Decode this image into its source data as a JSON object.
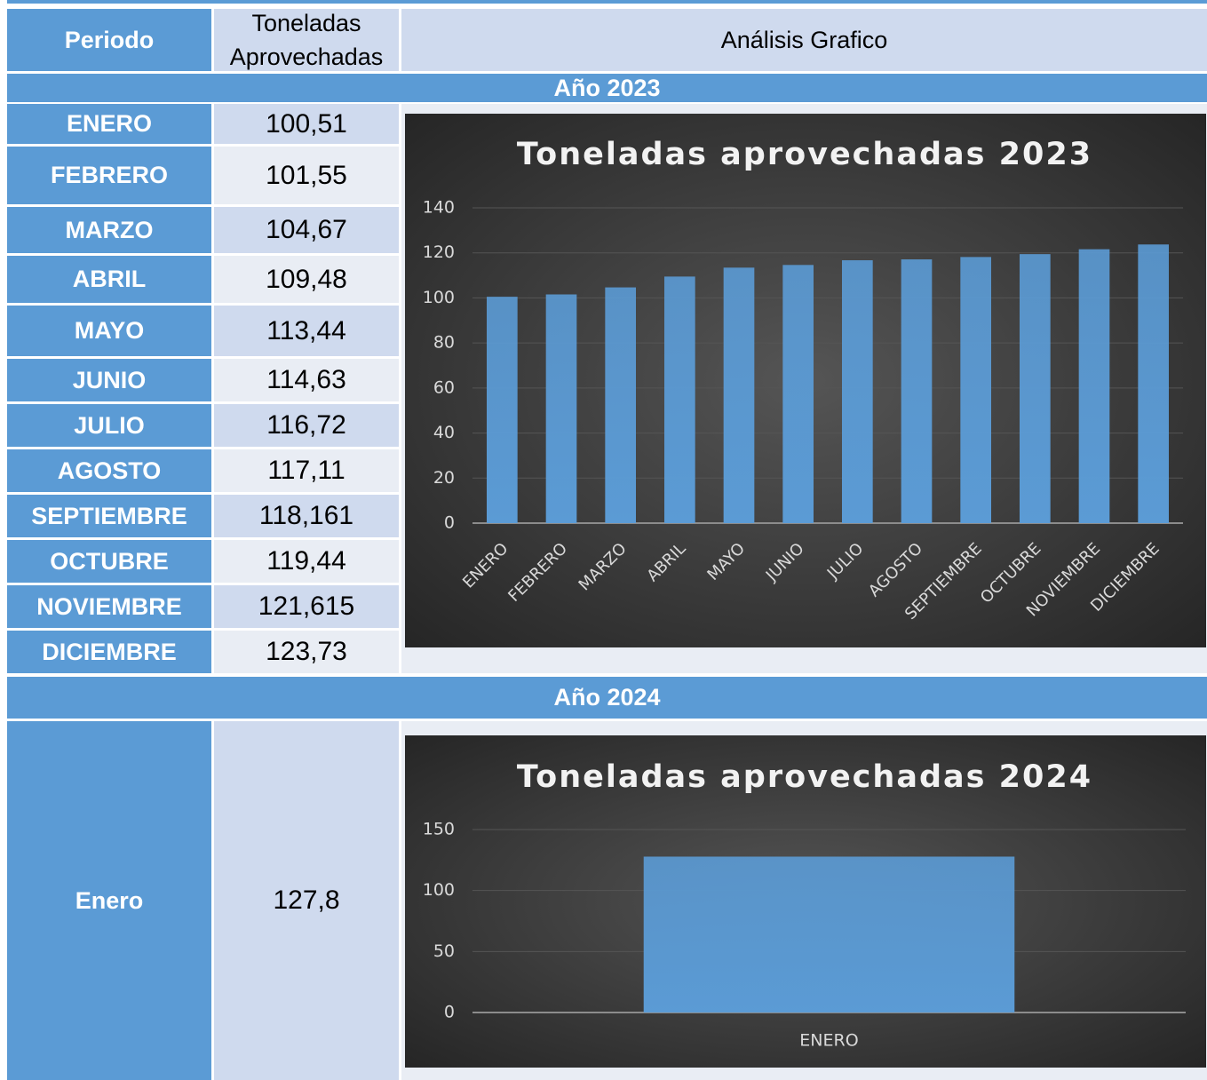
{
  "table": {
    "header": [
      "Periodo",
      "Toneladas Aprovechadas",
      "Análisis Grafico"
    ],
    "sections": [
      {
        "title": "Año 2023",
        "rows": [
          [
            "ENERO",
            "100,51"
          ],
          [
            "FEBRERO",
            "101,55"
          ],
          [
            "MARZO",
            "104,67"
          ],
          [
            "ABRIL",
            "109,48"
          ],
          [
            "MAYO",
            "113,44"
          ],
          [
            "JUNIO",
            "114,63"
          ],
          [
            "JULIO",
            "116,72"
          ],
          [
            "AGOSTO",
            "117,11"
          ],
          [
            "SEPTIEMBRE",
            "118,161"
          ],
          [
            "OCTUBRE",
            "119,44"
          ],
          [
            "NOVIEMBRE",
            "121,615"
          ],
          [
            "DICIEMBRE",
            "123,73"
          ]
        ]
      },
      {
        "title": "Año 2024",
        "rows": [
          [
            "Enero",
            "127,8"
          ]
        ]
      }
    ]
  },
  "chart_data": [
    {
      "type": "bar",
      "title": "Toneladas aprovechadas 2023",
      "categories": [
        "ENERO",
        "FEBRERO",
        "MARZO",
        "ABRIL",
        "MAYO",
        "JUNIO",
        "JULIO",
        "AGOSTO",
        "SEPTIEMBRE",
        "OCTUBRE",
        "NOVIEMBRE",
        "DICIEMBRE"
      ],
      "values": [
        100.51,
        101.55,
        104.67,
        109.48,
        113.44,
        114.63,
        116.72,
        117.11,
        118.161,
        119.44,
        121.615,
        123.73
      ],
      "color": "#5b9bd5",
      "ylim": [
        0,
        140
      ],
      "yticks": [
        0,
        20,
        40,
        60,
        80,
        100,
        120,
        140
      ],
      "grid": true
    },
    {
      "type": "bar",
      "title": "Toneladas aprovechadas 2024",
      "categories": [
        "ENERO"
      ],
      "values": [
        127.8
      ],
      "color": "#5b9bd5",
      "ylim": [
        0,
        150
      ],
      "yticks": [
        0,
        50,
        100,
        150
      ],
      "grid": true
    }
  ]
}
